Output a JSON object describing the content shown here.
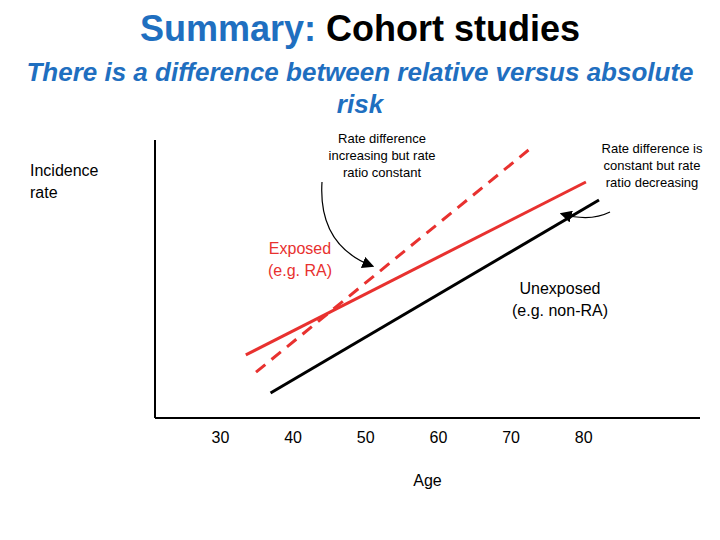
{
  "chart_data": {
    "type": "line",
    "title": "Summary: Cohort studies",
    "subtitle": "There is a difference between relative versus absolute risk",
    "x_label": "Age",
    "y_label": "Incidence rate",
    "x": [
      33.5,
      34.9,
      36.9,
      72.4,
      80.3,
      82.1
    ],
    "series": [
      {
        "name": "Exposed (e.g. RA)",
        "color": "#e8312f",
        "line_style": "solid",
        "values": [
          2.27,
          null,
          null,
          null,
          8.49,
          null
        ]
      },
      {
        "color": "#e8312f",
        "line_style": "dashed",
        "values": [
          null,
          1.65,
          null,
          9.64,
          null,
          null
        ]
      },
      {
        "name": "Unexposed (e.g. non-RA)",
        "color": "#000000",
        "line_style": "solid",
        "values": [
          null,
          null,
          0.9,
          null,
          null,
          7.84
        ]
      }
    ],
    "xlim": [
      21,
      96
    ],
    "xticks": [
      30,
      40,
      50,
      60,
      70,
      80
    ],
    "ylim": [
      0,
      10
    ],
    "tick_labels": "x",
    "annotations": [
      {
        "text": "Rate difference increasing but rate ratio constant"
      },
      {
        "text": "Rate difference is constant but rate ratio decreasing"
      }
    ]
  }
}
